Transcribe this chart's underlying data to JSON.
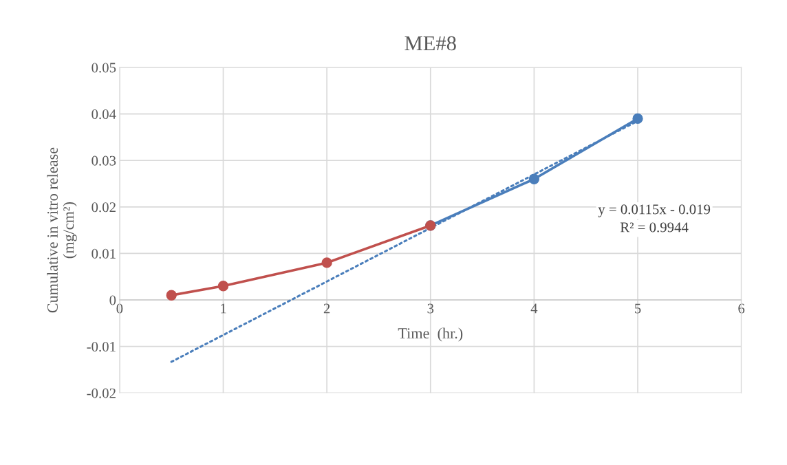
{
  "chart_data": {
    "type": "line",
    "title": "ME#8",
    "xlabel": "Time  (hr.)",
    "ylabel": "Cumulative in vitro release\n(mg/cm²)",
    "xlim": [
      0,
      6
    ],
    "xticks": [
      0,
      1,
      2,
      3,
      4,
      5,
      6
    ],
    "ylim": [
      -0.02,
      0.05
    ],
    "yticks": [
      -0.02,
      -0.01,
      0,
      0.01,
      0.02,
      0.03,
      0.04,
      0.05
    ],
    "grid": true,
    "series": [
      {
        "color": "#c0504d",
        "x": [
          0.5,
          1,
          2,
          3
        ],
        "values": [
          0.001,
          0.003,
          0.008,
          0.016
        ],
        "marker": "circle",
        "line_style": "solid"
      },
      {
        "color": "#4a7ebb",
        "x": [
          3,
          4,
          5
        ],
        "values": [
          0.016,
          0.026,
          0.039
        ],
        "marker": "circle",
        "line_style": "solid"
      },
      {
        "color": "#4a7ebb",
        "x": [
          0.5,
          5
        ],
        "values": [
          -0.0133,
          0.0385
        ],
        "marker": "none",
        "line_style": "dotted"
      }
    ],
    "annotations": [
      "y = 0.0115x - 0.019",
      "R² = 0.9944"
    ]
  }
}
